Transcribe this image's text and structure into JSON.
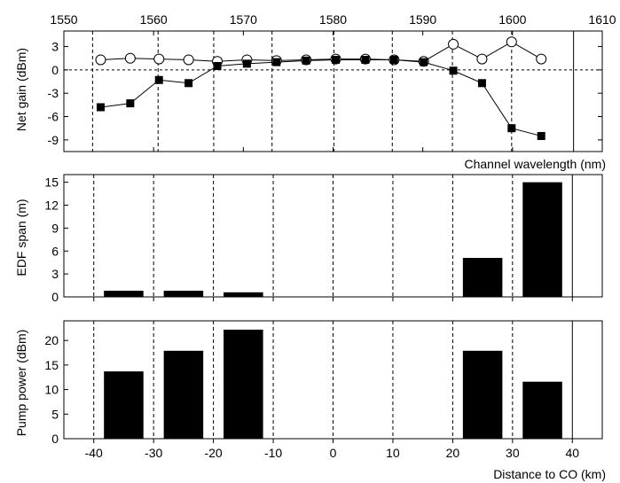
{
  "chart_data": [
    {
      "type": "line",
      "title": "",
      "xlabel": "Channel wavelength (nm)",
      "ylabel": "Net gain (dBm)",
      "xlim": [
        1550,
        1610
      ],
      "ylim": [
        -10.5,
        5
      ],
      "xticks": [
        "1550",
        "1560",
        "1570",
        "1580",
        "1590",
        "1600",
        "1610"
      ],
      "yticks": [
        "3",
        "0",
        "-3",
        "-6",
        "-9"
      ],
      "series": [
        {
          "marker": "open-circle",
          "x": [
            1554.1,
            1557.4,
            1560.6,
            1563.9,
            1567.1,
            1570.4,
            1573.7,
            1577,
            1580.3,
            1583.6,
            1586.8,
            1590.1,
            1593.4,
            1596.6,
            1599.9,
            1603.2
          ],
          "values": [
            1.3,
            1.5,
            1.4,
            1.3,
            1.1,
            1.3,
            1.2,
            1.3,
            1.4,
            1.4,
            1.3,
            1.1,
            3.3,
            1.4,
            3.6,
            1.4
          ]
        },
        {
          "marker": "filled-square",
          "x": [
            1554.1,
            1557.4,
            1560.6,
            1563.9,
            1567.1,
            1570.4,
            1573.7,
            1577,
            1580.3,
            1583.6,
            1586.8,
            1590.1,
            1593.4,
            1596.6,
            1599.9,
            1603.2
          ],
          "values": [
            -4.8,
            -4.3,
            -1.3,
            -1.7,
            0.5,
            0.8,
            1.0,
            1.2,
            1.3,
            1.3,
            1.3,
            1.0,
            -0.1,
            -1.7,
            -7.5,
            -8.5
          ]
        }
      ],
      "reference_line_y": 0,
      "vertical_dashed_x": [
        1553.2,
        1560.5,
        1566.7,
        1573.2,
        1580.1,
        1586.6,
        1593.3,
        1599.9
      ],
      "vertical_solid_x": 1606.8,
      "grid": false
    },
    {
      "type": "bar",
      "xlabel": "",
      "ylabel": "EDF span (m)",
      "xlim": [
        -45,
        45
      ],
      "ylim": [
        0,
        16
      ],
      "yticks": [
        "15",
        "12",
        "9",
        "6",
        "3",
        "0"
      ],
      "x": [
        -35,
        -25,
        -15,
        -5,
        5,
        15,
        25,
        35
      ],
      "values": [
        0.8,
        0.8,
        0.6,
        0,
        0,
        0,
        5.1,
        15
      ],
      "vertical_dashed_x": [
        -40,
        -30,
        -20,
        -10,
        0,
        10,
        20,
        30
      ],
      "vertical_solid_x": 40
    },
    {
      "type": "bar",
      "xlabel": "Distance to CO (km)",
      "ylabel": "Pump power (dBm)",
      "xlim": [
        -45,
        45
      ],
      "ylim": [
        0,
        24
      ],
      "xticks": [
        "-40",
        "-30",
        "-20",
        "-10",
        "0",
        "10",
        "20",
        "30",
        "40"
      ],
      "yticks": [
        "20",
        "15",
        "10",
        "5",
        "0"
      ],
      "x": [
        -35,
        -25,
        -15,
        -5,
        5,
        15,
        25,
        35
      ],
      "values": [
        13.7,
        17.9,
        22.2,
        0,
        0,
        0,
        17.9,
        11.6
      ],
      "vertical_dashed_x": [
        -40,
        -30,
        -20,
        -10,
        0,
        10,
        20,
        30
      ],
      "vertical_solid_x": 40
    }
  ]
}
